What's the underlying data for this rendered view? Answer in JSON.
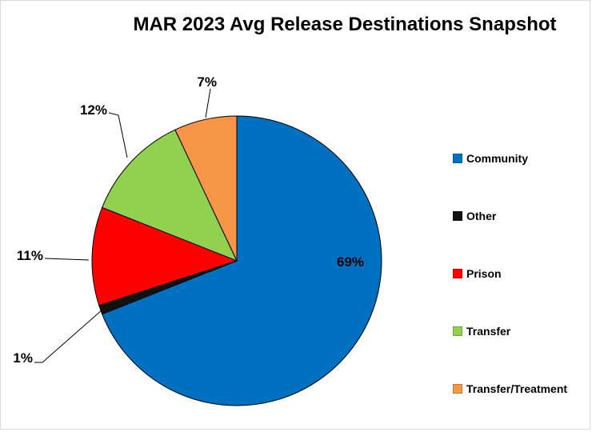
{
  "chart_data": {
    "type": "pie",
    "title": "MAR 2023 Avg Release Destinations Snapshot",
    "categories": [
      "Community",
      "Other",
      "Prison",
      "Transfer",
      "Transfer/Treatment"
    ],
    "values": [
      69,
      1,
      11,
      12,
      7
    ],
    "labels": [
      "69%",
      "1%",
      "11%",
      "12%",
      "7%"
    ],
    "colors": [
      "#0070C0",
      "#111111",
      "#FF0000",
      "#92D050",
      "#F79646"
    ],
    "legend_position": "right"
  }
}
